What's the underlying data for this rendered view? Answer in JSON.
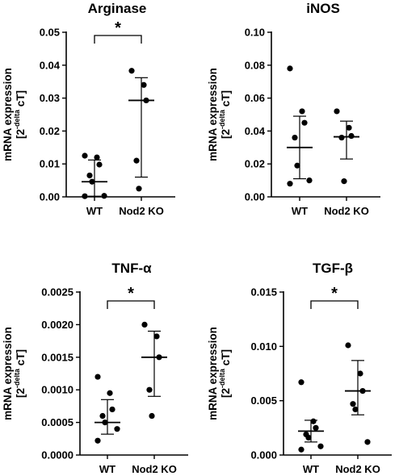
{
  "chart_data": [
    {
      "type": "scatter",
      "title": "Arginase",
      "ylabel": {
        "line1": "mRNA expression",
        "pre": "[2",
        "sup": "-delta",
        "post": " cT]"
      },
      "categories": [
        "WT",
        "Nod2 KO"
      ],
      "ylim": [
        0,
        0.05
      ],
      "yticks": [
        "0.00",
        "0.01",
        "0.02",
        "0.03",
        "0.04",
        "0.05"
      ],
      "series": [
        {
          "category": "WT",
          "points": [
            0.0125,
            0.012,
            0.0098,
            0.0065,
            0.0046,
            0.0003,
            0.0002
          ],
          "center": 0.0046,
          "err_low": 0.0002,
          "err_high": 0.0112
        },
        {
          "category": "Nod2 KO",
          "points": [
            0.0383,
            0.034,
            0.0293,
            0.011,
            0.0025
          ],
          "center": 0.0293,
          "err_low": 0.006,
          "err_high": 0.0362
        }
      ],
      "significance": {
        "label": "*",
        "pair": [
          "WT",
          "Nod2 KO"
        ]
      }
    },
    {
      "type": "scatter",
      "title": "iNOS",
      "ylabel": {
        "line1": "mRNA expression",
        "pre": "[2",
        "sup": "-delta",
        "post": " cT]"
      },
      "categories": [
        "WT",
        "Nod2 KO"
      ],
      "ylim": [
        0,
        0.1
      ],
      "yticks": [
        "0.00",
        "0.02",
        "0.04",
        "0.06",
        "0.08",
        "0.10"
      ],
      "series": [
        {
          "category": "WT",
          "points": [
            0.078,
            0.052,
            0.045,
            0.036,
            0.019,
            0.01,
            0.008
          ],
          "center": 0.03,
          "err_low": 0.011,
          "err_high": 0.049
        },
        {
          "category": "Nod2 KO",
          "points": [
            0.052,
            0.042,
            0.037,
            0.036,
            0.0095
          ],
          "center": 0.0365,
          "err_low": 0.023,
          "err_high": 0.046
        }
      ],
      "significance": null
    },
    {
      "type": "scatter",
      "title": "TNF-α",
      "ylabel": {
        "line1": "mRNA expression",
        "pre": "[2",
        "sup": "-delta",
        "post": " cT]"
      },
      "categories": [
        "WT",
        "Nod2 KO"
      ],
      "ylim": [
        0,
        0.0025
      ],
      "yticks": [
        "0.0000",
        "0.0005",
        "0.0010",
        "0.0015",
        "0.0020",
        "0.0025"
      ],
      "series": [
        {
          "category": "WT",
          "points": [
            0.0012,
            0.00095,
            0.0007,
            0.0006,
            0.0005,
            0.0004,
            0.00022
          ],
          "center": 0.0005,
          "err_low": 0.00032,
          "err_high": 0.00085
        },
        {
          "category": "Nod2 KO",
          "points": [
            0.002,
            0.00182,
            0.0015,
            0.001,
            0.0006
          ],
          "center": 0.0015,
          "err_low": 0.0009,
          "err_high": 0.0019
        }
      ],
      "significance": {
        "label": "*",
        "pair": [
          "WT",
          "Nod2 KO"
        ]
      }
    },
    {
      "type": "scatter",
      "title": "TGF-β",
      "ylabel": {
        "line1": "mRNA expression",
        "pre": "[2",
        "sup": "-delta",
        "post": " cT]"
      },
      "categories": [
        "WT",
        "Nod2 KO"
      ],
      "ylim": [
        0,
        0.015
      ],
      "yticks": [
        "0.000",
        "0.005",
        "0.010",
        "0.015"
      ],
      "series": [
        {
          "category": "WT",
          "points": [
            0.0067,
            0.0031,
            0.0025,
            0.0019,
            0.0016,
            0.0008,
            0.0005
          ],
          "center": 0.0022,
          "err_low": 0.0012,
          "err_high": 0.0032
        },
        {
          "category": "Nod2 KO",
          "points": [
            0.0101,
            0.0075,
            0.0059,
            0.0047,
            0.0042,
            0.0012
          ],
          "center": 0.0059,
          "err_low": 0.0037,
          "err_high": 0.0087
        }
      ],
      "significance": {
        "label": "*",
        "pair": [
          "WT",
          "Nod2 KO"
        ]
      }
    }
  ]
}
